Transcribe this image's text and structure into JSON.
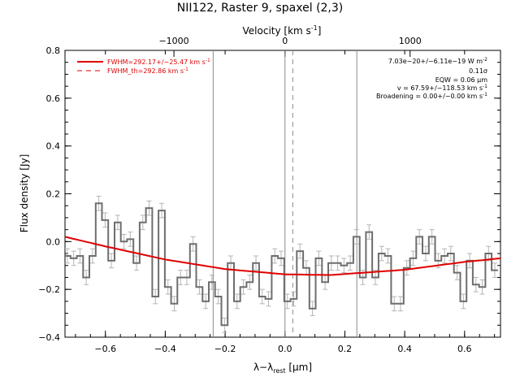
{
  "chart_data": {
    "type": "line",
    "title": "NII122, Raster 9, spaxel (2,3)",
    "xlabel": "λ−λ",
    "xlabel_sub": "rest",
    "xlabel_unit": " [μm]",
    "ylabel": "Flux density [Jy]",
    "top_axis_label": "Velocity [km s",
    "top_axis_label_sup": "-1",
    "top_axis_label_end": "]",
    "xlim": [
      -0.735,
      0.72
    ],
    "ylim": [
      -0.4,
      0.8
    ],
    "x_ticks": [
      -0.6,
      -0.4,
      -0.2,
      0.0,
      0.2,
      0.4,
      0.6
    ],
    "x_tick_labels": [
      "−0.6",
      "−0.4",
      "−0.2",
      "0.0",
      "0.2",
      "0.4",
      "0.6"
    ],
    "y_ticks": [
      -0.4,
      -0.2,
      0.0,
      0.2,
      0.4,
      0.6,
      0.8
    ],
    "y_tick_labels": [
      "−0.4",
      "−0.2",
      "0.0",
      "0.2",
      "0.4",
      "0.6",
      "0.8"
    ],
    "top_ticks": [
      -1000,
      0,
      1000
    ],
    "top_tick_labels": [
      "−1000",
      "0",
      "1000"
    ],
    "top_tick_positions": [
      -0.371,
      0.0,
      0.418
    ],
    "vlines": [
      -0.24,
      0.0,
      0.24
    ],
    "vline_dashed": 0.026,
    "series": [
      {
        "name": "FWHM=292.17+/−25.47 km s",
        "name_sup": "-1",
        "color": "#e00000",
        "style": "solid",
        "x": [
          -0.735,
          -0.6,
          -0.4,
          -0.2,
          0.0,
          0.15,
          0.4,
          0.6,
          0.72
        ],
        "y": [
          0.02,
          -0.02,
          -0.075,
          -0.115,
          -0.137,
          -0.14,
          -0.118,
          -0.085,
          -0.07
        ]
      },
      {
        "name": "FWHM_th=292.86 km s",
        "name_sup": "-1",
        "color": "#e00000",
        "style": "dashed"
      }
    ],
    "spectrum": {
      "x": [
        -0.727,
        -0.706,
        -0.685,
        -0.664,
        -0.643,
        -0.622,
        -0.601,
        -0.58,
        -0.559,
        -0.538,
        -0.517,
        -0.496,
        -0.475,
        -0.454,
        -0.433,
        -0.412,
        -0.391,
        -0.37,
        -0.349,
        -0.328,
        -0.307,
        -0.286,
        -0.265,
        -0.244,
        -0.223,
        -0.202,
        -0.181,
        -0.16,
        -0.139,
        -0.118,
        -0.097,
        -0.076,
        -0.055,
        -0.034,
        -0.013,
        0.008,
        0.029,
        0.05,
        0.071,
        0.092,
        0.113,
        0.134,
        0.155,
        0.176,
        0.197,
        0.218,
        0.239,
        0.26,
        0.281,
        0.302,
        0.323,
        0.344,
        0.365,
        0.386,
        0.407,
        0.428,
        0.449,
        0.47,
        0.491,
        0.512,
        0.533,
        0.554,
        0.575,
        0.596,
        0.617,
        0.638,
        0.659,
        0.68,
        0.701
      ],
      "y": [
        -0.06,
        -0.07,
        -0.06,
        -0.15,
        -0.06,
        0.16,
        0.09,
        -0.08,
        0.08,
        0.0,
        0.01,
        -0.09,
        0.08,
        0.14,
        -0.23,
        0.13,
        -0.19,
        -0.26,
        -0.15,
        -0.15,
        -0.01,
        -0.19,
        -0.25,
        -0.17,
        -0.23,
        -0.35,
        -0.09,
        -0.25,
        -0.19,
        -0.17,
        -0.09,
        -0.23,
        -0.24,
        -0.06,
        -0.07,
        -0.25,
        -0.24,
        -0.04,
        -0.11,
        -0.28,
        -0.07,
        -0.17,
        -0.09,
        -0.09,
        -0.1,
        -0.09,
        0.02,
        -0.15,
        0.04,
        -0.15,
        -0.05,
        -0.06,
        -0.26,
        -0.26,
        -0.11,
        -0.07,
        0.02,
        -0.05,
        0.02,
        -0.08,
        -0.06,
        -0.05,
        -0.13,
        -0.25,
        -0.08,
        -0.18,
        -0.19,
        -0.05,
        -0.12
      ],
      "err": 0.03
    },
    "annotations": {
      "flux": "7.03e−20+/−6.11e−19 W m",
      "flux_sup": "-2",
      "sigma": "0.11σ",
      "eqw": "EQW = 0.06 μm",
      "velocity": "v = 67.59+/−118.53 km s",
      "velocity_sup": "-1",
      "broadening": "Broadening = 0.00+/−0.00 km s",
      "broadening_sup": "-1"
    },
    "legend": "top-left",
    "grid": false
  }
}
